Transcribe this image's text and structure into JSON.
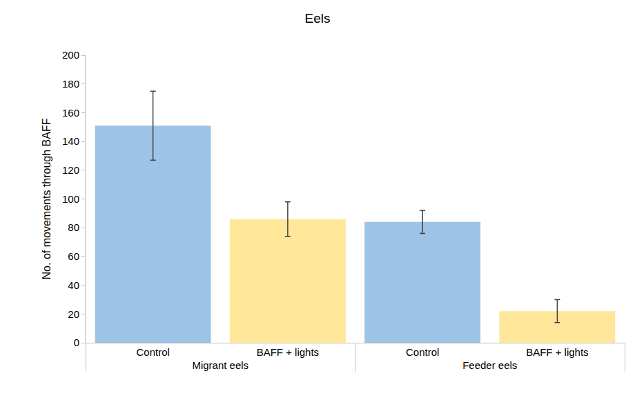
{
  "chart_data": {
    "type": "bar",
    "title": "Eels",
    "y_label": "No. of movements through BAFF",
    "groups": [
      "Migrant eels",
      "Migrant eels",
      "Feeder eels",
      "Feeder eels"
    ],
    "categories": [
      "Control",
      "BAFF + lights",
      "Control",
      "BAFF + lights"
    ],
    "values": [
      151,
      86,
      84,
      22
    ],
    "errors": [
      24,
      12,
      8,
      8
    ],
    "colors": [
      "#9dc3e6",
      "#ffe699",
      "#9dc3e6",
      "#ffe699"
    ],
    "ylim": [
      0,
      200
    ],
    "yticks": [
      0,
      20,
      40,
      60,
      80,
      100,
      120,
      140,
      160,
      180,
      200
    ],
    "grid": false
  }
}
